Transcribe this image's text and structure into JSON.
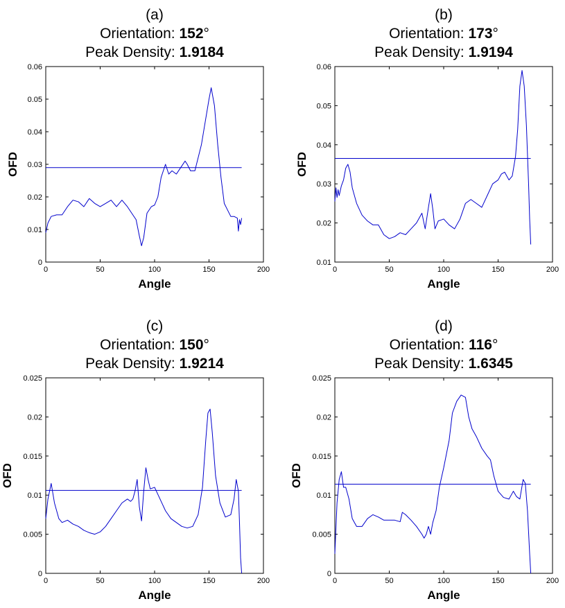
{
  "chart_data": [
    {
      "type": "line",
      "panel_label": "(a)",
      "orientation_prefix": "Orientation: ",
      "orientation_value": "152",
      "orientation_unit": "°",
      "peak_prefix": "Peak Density: ",
      "peak_value": "1.9184",
      "xlabel": "Angle",
      "ylabel": "OFD",
      "xlim": [
        0,
        200
      ],
      "ylim": [
        0,
        0.06
      ],
      "xticks": [
        0,
        50,
        100,
        150,
        200
      ],
      "xtick_labels": [
        "0",
        "50",
        "100",
        "150",
        "200"
      ],
      "yticks": [
        0,
        0.01,
        0.02,
        0.03,
        0.04,
        0.05,
        0.06
      ],
      "ytick_labels": [
        "0",
        "0.01",
        "0.02",
        "0.03",
        "0.04",
        "0.05",
        "0.06"
      ],
      "threshold": {
        "y": 0.029,
        "x": [
          0,
          180
        ]
      },
      "series": [
        {
          "color": "#0000cc",
          "points": [
            [
              0,
              0.009
            ],
            [
              2,
              0.012
            ],
            [
              5,
              0.014
            ],
            [
              10,
              0.0145
            ],
            [
              15,
              0.0145
            ],
            [
              20,
              0.017
            ],
            [
              25,
              0.019
            ],
            [
              30,
              0.0185
            ],
            [
              35,
              0.017
            ],
            [
              40,
              0.0195
            ],
            [
              45,
              0.018
            ],
            [
              50,
              0.017
            ],
            [
              55,
              0.018
            ],
            [
              60,
              0.019
            ],
            [
              65,
              0.017
            ],
            [
              70,
              0.019
            ],
            [
              75,
              0.017
            ],
            [
              80,
              0.0145
            ],
            [
              83,
              0.013
            ],
            [
              86,
              0.008
            ],
            [
              88,
              0.005
            ],
            [
              90,
              0.0075
            ],
            [
              93,
              0.015
            ],
            [
              97,
              0.017
            ],
            [
              100,
              0.0175
            ],
            [
              103,
              0.02
            ],
            [
              106,
              0.026
            ],
            [
              110,
              0.03
            ],
            [
              113,
              0.027
            ],
            [
              116,
              0.028
            ],
            [
              120,
              0.027
            ],
            [
              124,
              0.029
            ],
            [
              128,
              0.031
            ],
            [
              130,
              0.03
            ],
            [
              133,
              0.028
            ],
            [
              137,
              0.028
            ],
            [
              140,
              0.032
            ],
            [
              143,
              0.036
            ],
            [
              146,
              0.042
            ],
            [
              150,
              0.05
            ],
            [
              152,
              0.0535
            ],
            [
              155,
              0.048
            ],
            [
              158,
              0.036
            ],
            [
              161,
              0.026
            ],
            [
              164,
              0.018
            ],
            [
              167,
              0.016
            ],
            [
              170,
              0.014
            ],
            [
              173,
              0.014
            ],
            [
              176,
              0.0135
            ],
            [
              177,
              0.0095
            ],
            [
              178,
              0.013
            ],
            [
              179,
              0.0115
            ],
            [
              180,
              0.0135
            ]
          ]
        }
      ]
    },
    {
      "type": "line",
      "panel_label": "(b)",
      "orientation_prefix": "Orientation: ",
      "orientation_value": "173",
      "orientation_unit": "°",
      "peak_prefix": "Peak Density: ",
      "peak_value": "1.9194",
      "xlabel": "Angle",
      "ylabel": "OFD",
      "xlim": [
        0,
        200
      ],
      "ylim": [
        0.01,
        0.06
      ],
      "xticks": [
        0,
        50,
        100,
        150,
        200
      ],
      "xtick_labels": [
        "0",
        "50",
        "100",
        "150",
        "200"
      ],
      "yticks": [
        0.01,
        0.02,
        0.03,
        0.04,
        0.05,
        0.06
      ],
      "ytick_labels": [
        "0.01",
        "0.02",
        "0.03",
        "0.04",
        "0.05",
        "0.06"
      ],
      "threshold": {
        "y": 0.0365,
        "x": [
          0,
          180
        ]
      },
      "series": [
        {
          "color": "#0000cc",
          "points": [
            [
              0,
              0.0255
            ],
            [
              1,
              0.029
            ],
            [
              2,
              0.0265
            ],
            [
              3,
              0.0285
            ],
            [
              4,
              0.027
            ],
            [
              6,
              0.0295
            ],
            [
              8,
              0.031
            ],
            [
              10,
              0.034
            ],
            [
              12,
              0.035
            ],
            [
              14,
              0.033
            ],
            [
              16,
              0.029
            ],
            [
              20,
              0.025
            ],
            [
              25,
              0.022
            ],
            [
              30,
              0.0205
            ],
            [
              35,
              0.0195
            ],
            [
              40,
              0.0195
            ],
            [
              45,
              0.017
            ],
            [
              50,
              0.016
            ],
            [
              55,
              0.0165
            ],
            [
              60,
              0.0175
            ],
            [
              65,
              0.017
            ],
            [
              70,
              0.0185
            ],
            [
              75,
              0.02
            ],
            [
              80,
              0.0225
            ],
            [
              83,
              0.0185
            ],
            [
              86,
              0.024
            ],
            [
              88,
              0.0275
            ],
            [
              90,
              0.0235
            ],
            [
              92,
              0.0185
            ],
            [
              95,
              0.0205
            ],
            [
              100,
              0.021
            ],
            [
              105,
              0.0195
            ],
            [
              110,
              0.0185
            ],
            [
              115,
              0.021
            ],
            [
              120,
              0.025
            ],
            [
              125,
              0.026
            ],
            [
              130,
              0.025
            ],
            [
              135,
              0.024
            ],
            [
              140,
              0.027
            ],
            [
              145,
              0.03
            ],
            [
              150,
              0.031
            ],
            [
              153,
              0.0325
            ],
            [
              156,
              0.033
            ],
            [
              160,
              0.031
            ],
            [
              163,
              0.032
            ],
            [
              166,
              0.037
            ],
            [
              168,
              0.044
            ],
            [
              170,
              0.055
            ],
            [
              172,
              0.059
            ],
            [
              174,
              0.055
            ],
            [
              176,
              0.045
            ],
            [
              178,
              0.03
            ],
            [
              179,
              0.021
            ],
            [
              180,
              0.0145
            ]
          ]
        }
      ]
    },
    {
      "type": "line",
      "panel_label": "(c)",
      "orientation_prefix": "Orientation: ",
      "orientation_value": "150",
      "orientation_unit": "°",
      "peak_prefix": "Peak Density: ",
      "peak_value": "1.9214",
      "xlabel": "Angle",
      "ylabel": "OFD",
      "xlim": [
        0,
        200
      ],
      "ylim": [
        0,
        0.025
      ],
      "xticks": [
        0,
        50,
        100,
        150,
        200
      ],
      "xtick_labels": [
        "0",
        "50",
        "100",
        "150",
        "200"
      ],
      "yticks": [
        0,
        0.005,
        0.01,
        0.015,
        0.02,
        0.025
      ],
      "ytick_labels": [
        "0",
        "0.005",
        "0.01",
        "0.015",
        "0.02",
        "0.025"
      ],
      "threshold": {
        "y": 0.0106,
        "x": [
          0,
          180
        ]
      },
      "series": [
        {
          "color": "#0000cc",
          "points": [
            [
              0,
              0.007
            ],
            [
              2,
              0.0095
            ],
            [
              5,
              0.0115
            ],
            [
              8,
              0.009
            ],
            [
              12,
              0.007
            ],
            [
              15,
              0.0065
            ],
            [
              20,
              0.0068
            ],
            [
              25,
              0.0063
            ],
            [
              30,
              0.006
            ],
            [
              35,
              0.0055
            ],
            [
              40,
              0.0052
            ],
            [
              45,
              0.005
            ],
            [
              50,
              0.0053
            ],
            [
              55,
              0.006
            ],
            [
              60,
              0.007
            ],
            [
              65,
              0.008
            ],
            [
              70,
              0.009
            ],
            [
              75,
              0.0095
            ],
            [
              78,
              0.0092
            ],
            [
              80,
              0.0095
            ],
            [
              82,
              0.0105
            ],
            [
              84,
              0.012
            ],
            [
              86,
              0.0085
            ],
            [
              88,
              0.0067
            ],
            [
              90,
              0.0105
            ],
            [
              92,
              0.0135
            ],
            [
              94,
              0.012
            ],
            [
              96,
              0.0108
            ],
            [
              100,
              0.011
            ],
            [
              105,
              0.0095
            ],
            [
              110,
              0.008
            ],
            [
              115,
              0.007
            ],
            [
              120,
              0.0065
            ],
            [
              125,
              0.006
            ],
            [
              130,
              0.0058
            ],
            [
              135,
              0.006
            ],
            [
              140,
              0.0075
            ],
            [
              144,
              0.011
            ],
            [
              147,
              0.017
            ],
            [
              149,
              0.0205
            ],
            [
              151,
              0.021
            ],
            [
              153,
              0.018
            ],
            [
              156,
              0.0125
            ],
            [
              160,
              0.009
            ],
            [
              165,
              0.0072
            ],
            [
              170,
              0.0075
            ],
            [
              173,
              0.0095
            ],
            [
              175,
              0.012
            ],
            [
              177,
              0.0105
            ],
            [
              178,
              0.0065
            ],
            [
              179,
              0.002
            ],
            [
              180,
              0.0
            ]
          ]
        }
      ]
    },
    {
      "type": "line",
      "panel_label": "(d)",
      "orientation_prefix": "Orientation: ",
      "orientation_value": "116",
      "orientation_unit": "°",
      "peak_prefix": "Peak Density: ",
      "peak_value": "1.6345",
      "xlabel": "Angle",
      "ylabel": "OFD",
      "xlim": [
        0,
        200
      ],
      "ylim": [
        0,
        0.025
      ],
      "xticks": [
        0,
        50,
        100,
        150,
        200
      ],
      "xtick_labels": [
        "0",
        "50",
        "100",
        "150",
        "200"
      ],
      "yticks": [
        0,
        0.005,
        0.01,
        0.015,
        0.02,
        0.025
      ],
      "ytick_labels": [
        "0",
        "0.005",
        "0.01",
        "0.015",
        "0.02",
        "0.025"
      ],
      "threshold": {
        "y": 0.0114,
        "x": [
          0,
          180
        ]
      },
      "series": [
        {
          "color": "#0000cc",
          "points": [
            [
              0,
              0.0025
            ],
            [
              2,
              0.009
            ],
            [
              4,
              0.012
            ],
            [
              6,
              0.013
            ],
            [
              8,
              0.011
            ],
            [
              10,
              0.011
            ],
            [
              13,
              0.0095
            ],
            [
              16,
              0.007
            ],
            [
              20,
              0.006
            ],
            [
              25,
              0.006
            ],
            [
              30,
              0.007
            ],
            [
              35,
              0.0075
            ],
            [
              40,
              0.0072
            ],
            [
              45,
              0.0068
            ],
            [
              50,
              0.0068
            ],
            [
              55,
              0.0068
            ],
            [
              60,
              0.0066
            ],
            [
              62,
              0.0078
            ],
            [
              65,
              0.0075
            ],
            [
              70,
              0.0068
            ],
            [
              75,
              0.006
            ],
            [
              80,
              0.005
            ],
            [
              82,
              0.0045
            ],
            [
              84,
              0.005
            ],
            [
              86,
              0.006
            ],
            [
              88,
              0.005
            ],
            [
              90,
              0.0065
            ],
            [
              93,
              0.008
            ],
            [
              96,
              0.011
            ],
            [
              100,
              0.0135
            ],
            [
              105,
              0.017
            ],
            [
              108,
              0.0205
            ],
            [
              112,
              0.022
            ],
            [
              116,
              0.0228
            ],
            [
              120,
              0.0225
            ],
            [
              123,
              0.02
            ],
            [
              126,
              0.0185
            ],
            [
              130,
              0.0175
            ],
            [
              135,
              0.016
            ],
            [
              140,
              0.015
            ],
            [
              143,
              0.0145
            ],
            [
              146,
              0.0125
            ],
            [
              150,
              0.0105
            ],
            [
              155,
              0.0097
            ],
            [
              160,
              0.0095
            ],
            [
              164,
              0.0105
            ],
            [
              167,
              0.0098
            ],
            [
              170,
              0.0095
            ],
            [
              173,
              0.012
            ],
            [
              175,
              0.0115
            ],
            [
              177,
              0.008
            ],
            [
              179,
              0.0025
            ],
            [
              180,
              0.0
            ]
          ]
        }
      ]
    }
  ]
}
